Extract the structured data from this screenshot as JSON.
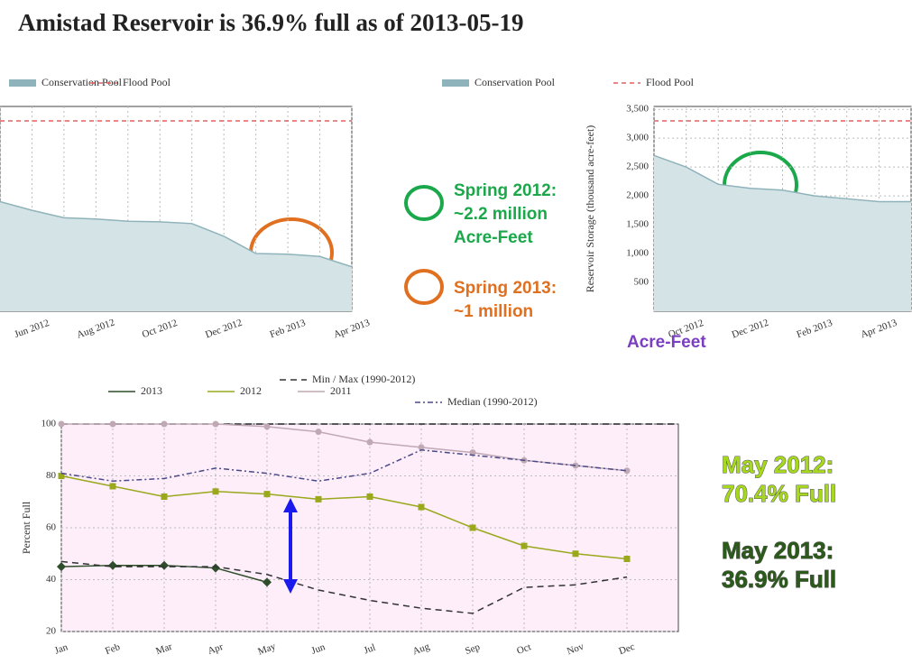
{
  "title": "Amistad Reservoir is 36.9% full as of 2013-05-19",
  "annotations": [
    {
      "lines": [
        "Spring 2012:",
        "~2.2 million",
        "Acre-Feet"
      ],
      "color": "#1aa84a"
    },
    {
      "lines": [
        "Spring 2013:",
        "~1 million"
      ],
      "color": "#e07020"
    },
    {
      "lines": [
        "Acre-Feet"
      ],
      "color": "#7a3fc0"
    },
    {
      "lines": [
        "May 2012:",
        "70.4% Full"
      ],
      "color": "#a6d81e"
    },
    {
      "lines": [
        "May 2013:",
        "36.9% Full"
      ],
      "color": "#2b5a1a"
    }
  ],
  "chart_data": [
    {
      "type": "area",
      "categories": [
        null,
        "Jun 2012",
        null,
        "Aug 2012",
        null,
        "Oct 2012",
        null,
        "Dec 2012",
        null,
        "Feb 2013",
        null,
        "Apr 2013"
      ],
      "series": [
        {
          "name": "Conservation Pool",
          "color": "#8fb3ba",
          "values": [
            1900,
            1750,
            1620,
            1600,
            1560,
            1550,
            1520,
            1300,
            1000,
            990,
            950,
            770
          ]
        }
      ],
      "flood_pool": {
        "name": "Flood Pool",
        "color": "#e06060",
        "value": 3300
      },
      "ylim": [
        0,
        3550
      ],
      "grid": true
    },
    {
      "type": "area",
      "ylabel": "Reservoir Storage (thousand acre-feet)",
      "categories": [
        null,
        "Oct 2012",
        null,
        "Dec 2012",
        null,
        "Feb 2013",
        null,
        "Apr 2013",
        null
      ],
      "series": [
        {
          "name": "Conservation Pool",
          "color": "#8fb3ba",
          "values": [
            2700,
            2500,
            2200,
            2130,
            2100,
            2000,
            1950,
            1900,
            1900
          ]
        }
      ],
      "flood_pool": {
        "name": "Flood Pool",
        "color": "#e06060",
        "value": 3300
      },
      "ylim": [
        0,
        3550
      ],
      "yticks": [
        500,
        {
          "value": 1000,
          "label": "1,000"
        },
        {
          "value": 1500,
          "label": "1,500"
        },
        {
          "value": 2000,
          "label": "2,000"
        },
        {
          "value": 2500,
          "label": "2,500"
        },
        {
          "value": 3000,
          "label": "3,000"
        },
        {
          "value": 3500,
          "label": "3,500"
        }
      ],
      "grid": true
    },
    {
      "type": "line",
      "ylabel": "Percent Full",
      "categories": [
        "Jan",
        "Feb",
        "Mar",
        "Apr",
        "May",
        "Jun",
        "Jul",
        "Aug",
        "Sep",
        "Oct",
        "Nov",
        "Dec"
      ],
      "series": [
        {
          "name": "2013",
          "color": "#2e4d2a",
          "marker": "diamond",
          "values": [
            45,
            45.5,
            45.5,
            44.5,
            39,
            null,
            null,
            null,
            null,
            null,
            null,
            null
          ]
        },
        {
          "name": "2012",
          "color": "#9aa81c",
          "marker": "square",
          "values": [
            80,
            76,
            72,
            74,
            73,
            71,
            72,
            68,
            60,
            53,
            50,
            48
          ]
        },
        {
          "name": "2011",
          "color": "#c0a8b4",
          "marker": "circle",
          "values": [
            100,
            100,
            100,
            100,
            99,
            97,
            93,
            91,
            89,
            86,
            84,
            82
          ]
        },
        {
          "name": "Min / Max (1990-2012)",
          "color": "#333333",
          "dash": "7,5",
          "values": [
            47,
            45,
            45,
            45,
            42,
            36,
            32,
            29,
            27,
            37,
            38,
            41
          ]
        },
        {
          "name": "Median (1990-2012)",
          "color": "#4a4a8a",
          "dash": "6,3,2,3",
          "values": [
            81,
            78,
            79,
            83,
            81,
            78,
            81,
            90,
            88,
            86,
            84,
            82
          ]
        }
      ],
      "max_line": 100,
      "ylim": [
        20,
        100
      ],
      "yticks": [
        20,
        40,
        60,
        80,
        100
      ],
      "grid": true
    }
  ]
}
